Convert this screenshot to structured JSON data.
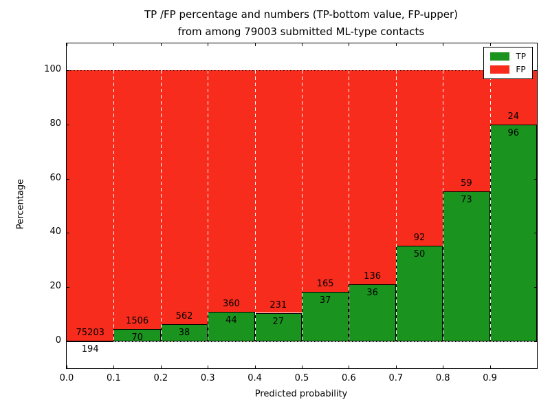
{
  "chart_data": {
    "type": "bar",
    "stacked": true,
    "title_line1": "TP /FP percentage and numbers (TP-bottom value, FP-upper)",
    "title_line2": "from among 79003 submitted ML-type contacts",
    "xlabel": "Predicted probability",
    "ylabel": "Percentage",
    "xlim": [
      0,
      1.0
    ],
    "ylim": [
      -10,
      110
    ],
    "x_ticks": [
      "0.0",
      "0.1",
      "0.2",
      "0.3",
      "0.4",
      "0.5",
      "0.6",
      "0.7",
      "0.8",
      "0.9"
    ],
    "y_ticks": [
      0,
      20,
      40,
      60,
      80,
      100
    ],
    "v_gridlines": [
      0.1,
      0.2,
      0.3,
      0.4,
      0.5,
      0.6,
      0.7,
      0.8,
      0.9
    ],
    "h_gridlines": [
      0,
      100
    ],
    "grid": "vertical white dashed, horizontal black dotted at 0 and 100",
    "legend_position": "upper right",
    "series": [
      {
        "name": "TP",
        "color": "#1a941f",
        "position": "bottom"
      },
      {
        "name": "FP",
        "color": "#f72c1d",
        "position": "top"
      }
    ],
    "total_contacts": 79003,
    "bins": [
      {
        "x0": 0.0,
        "x1": 0.1,
        "tp": 194,
        "fp": 75203
      },
      {
        "x0": 0.1,
        "x1": 0.2,
        "tp": 70,
        "fp": 1506
      },
      {
        "x0": 0.2,
        "x1": 0.3,
        "tp": 38,
        "fp": 562
      },
      {
        "x0": 0.3,
        "x1": 0.4,
        "tp": 44,
        "fp": 360
      },
      {
        "x0": 0.4,
        "x1": 0.5,
        "tp": 27,
        "fp": 231
      },
      {
        "x0": 0.5,
        "x1": 0.6,
        "tp": 37,
        "fp": 165
      },
      {
        "x0": 0.6,
        "x1": 0.7,
        "tp": 36,
        "fp": 136
      },
      {
        "x0": 0.7,
        "x1": 0.8,
        "tp": 50,
        "fp": 92
      },
      {
        "x0": 0.8,
        "x1": 0.9,
        "tp": 73,
        "fp": 59
      },
      {
        "x0": 0.9,
        "x1": 1.0,
        "tp": 96,
        "fp": 24
      }
    ]
  }
}
